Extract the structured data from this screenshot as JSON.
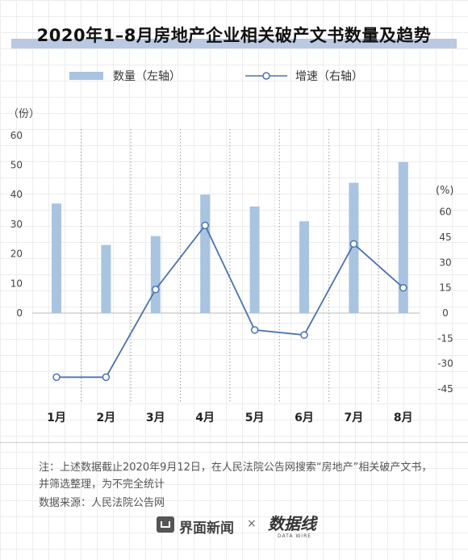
{
  "title": "2020年1–8月房地产企业相关破产文书数量及趋势",
  "legend": {
    "bar_label": "数量（左轴）",
    "line_label": "增速（右轴）"
  },
  "left_axis_unit": "（份）",
  "right_axis_unit": "(%)",
  "note": "注：上述数据截止2020年9月12日，在人民法院公告网搜索“房地产”相关破产文书，并筛选整理，为不完全统计",
  "source": "数据来源：人民法院公告网",
  "footer": {
    "brand": "界面新闻",
    "separator": "×",
    "partner_logo_text": "数据线",
    "partner_logo_sub": "DATA WIRE"
  },
  "colors": {
    "bar": "#a8c4e0",
    "line": "#4a72b0",
    "marker_fill": "#ffffff"
  },
  "chart_data": {
    "type": "bar",
    "categories": [
      "1月",
      "2月",
      "3月",
      "4月",
      "5月",
      "6月",
      "7月",
      "8月"
    ],
    "series": [
      {
        "name": "数量（左轴）",
        "type": "bar",
        "axis": "left",
        "values": [
          37,
          23,
          26,
          40,
          36,
          31,
          44,
          51
        ]
      },
      {
        "name": "增速（右轴）",
        "type": "line",
        "axis": "right",
        "values": [
          -38,
          -38,
          14,
          52,
          -10,
          -13,
          41,
          15
        ]
      }
    ],
    "left_axis": {
      "ticks": [
        0,
        10,
        20,
        30,
        40,
        50,
        60
      ],
      "ylim": [
        0,
        60
      ]
    },
    "right_axis": {
      "ticks": [
        -45,
        -30,
        -15,
        0,
        15,
        30,
        45,
        60
      ],
      "ylim": [
        -45,
        60
      ]
    }
  }
}
